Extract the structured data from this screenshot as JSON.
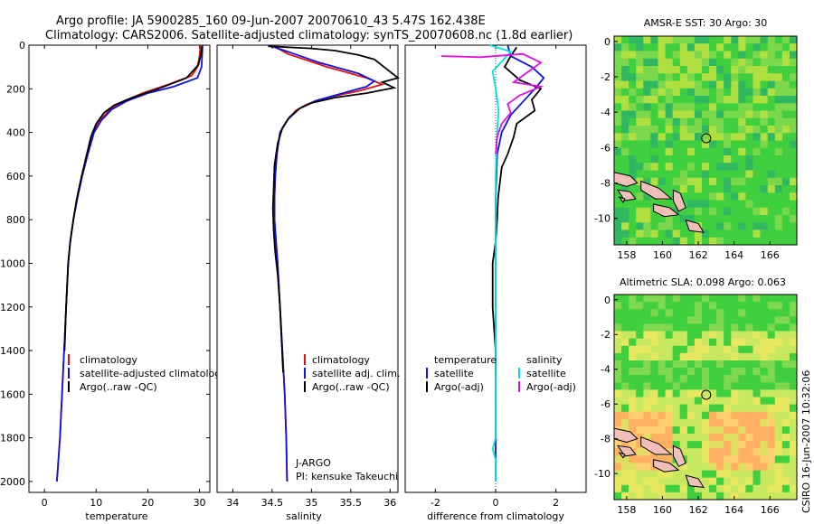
{
  "header": {
    "line1": "Argo profile: JA 5900285_160 09-Jun-2007 20070610_43 5.47S 162.438E",
    "line2": "Climatology: CARS2006. Satellite-adjusted climatology: synTS_20070608.nc (1.8d earlier)"
  },
  "side_label": "CSIRO 16-Jun-2007 10:32:06",
  "depth_ticks": [
    0,
    200,
    400,
    600,
    800,
    1000,
    1200,
    1400,
    1600,
    1800,
    2000
  ],
  "colors": {
    "climatology": "#e01010",
    "satellite": "#1010e0",
    "argo": "#000000",
    "sat_salinity": "#00e0e0",
    "argo_salinity": "#e010e0",
    "map_green": "#3fcf3f",
    "map_yellow": "#b0e040",
    "map_orange": "#ffb060",
    "land": "#f0c0b8"
  },
  "chart_data": [
    {
      "type": "line",
      "id": "temperature",
      "xlabel": "temperature",
      "xlim": [
        -3,
        32
      ],
      "xticks": [
        0,
        10,
        20,
        30
      ],
      "ylim": [
        2050,
        0
      ],
      "legend": [
        "climatology",
        "satellite-adjusted climatology",
        "Argo(..raw -QC)"
      ],
      "series": [
        {
          "name": "climatology",
          "color": "#e01010",
          "points": [
            [
              30.2,
              0
            ],
            [
              30.0,
              50
            ],
            [
              29.6,
              100
            ],
            [
              28.5,
              140
            ],
            [
              24,
              180
            ],
            [
              19,
              220
            ],
            [
              15,
              260
            ],
            [
              12.5,
              300
            ],
            [
              10.5,
              350
            ],
            [
              9.3,
              400
            ],
            [
              8.2,
              500
            ],
            [
              7.2,
              600
            ],
            [
              6.3,
              700
            ],
            [
              5.6,
              800
            ],
            [
              5.0,
              900
            ],
            [
              4.6,
              1000
            ],
            [
              4.2,
              1200
            ],
            [
              3.8,
              1400
            ],
            [
              3.4,
              1600
            ],
            [
              3.0,
              1800
            ],
            [
              2.4,
              2000
            ]
          ]
        },
        {
          "name": "satellite",
          "color": "#1010e0",
          "points": [
            [
              30.6,
              0
            ],
            [
              30.5,
              50
            ],
            [
              30.4,
              100
            ],
            [
              29.6,
              150
            ],
            [
              25,
              190
            ],
            [
              20,
              220
            ],
            [
              16,
              255
            ],
            [
              13,
              295
            ],
            [
              11,
              345
            ],
            [
              9.6,
              400
            ],
            [
              8.4,
              500
            ],
            [
              7.3,
              600
            ],
            [
              6.4,
              700
            ],
            [
              5.6,
              800
            ],
            [
              5.0,
              900
            ],
            [
              4.6,
              1000
            ],
            [
              4.2,
              1200
            ],
            [
              3.8,
              1400
            ],
            [
              3.4,
              1600
            ],
            [
              3.0,
              1800
            ],
            [
              2.4,
              2000
            ]
          ]
        },
        {
          "name": "Argo",
          "color": "#000000",
          "points": [
            [
              30.5,
              5
            ],
            [
              30.3,
              40
            ],
            [
              29.8,
              90
            ],
            [
              27.5,
              150
            ],
            [
              22,
              200
            ],
            [
              17,
              240
            ],
            [
              13.5,
              275
            ],
            [
              11.5,
              310
            ],
            [
              10,
              360
            ],
            [
              9,
              420
            ],
            [
              8.2,
              500
            ],
            [
              7.2,
              600
            ],
            [
              6.3,
              700
            ],
            [
              5.6,
              800
            ],
            [
              5.0,
              900
            ],
            [
              4.6,
              1000
            ],
            [
              4.2,
              1200
            ],
            [
              3.9,
              1400
            ]
          ]
        }
      ]
    },
    {
      "type": "line",
      "id": "salinity",
      "xlabel": "salinity",
      "xlim": [
        33.8,
        36.1
      ],
      "xticks": [
        34,
        34.5,
        35,
        35.5,
        36
      ],
      "xtick_labels": [
        "34",
        "34.5",
        "35",
        "35.5",
        "36"
      ],
      "ylim": [
        2050,
        0
      ],
      "legend": [
        "climatology",
        "satellite adj. clim.",
        "Argo(..raw -QC)"
      ],
      "series": [
        {
          "name": "climatology",
          "color": "#e01010",
          "points": [
            [
              34.5,
              0
            ],
            [
              34.7,
              40
            ],
            [
              35.2,
              100
            ],
            [
              35.7,
              150
            ],
            [
              35.9,
              180
            ],
            [
              35.6,
              210
            ],
            [
              35.2,
              240
            ],
            [
              34.95,
              270
            ],
            [
              34.8,
              300
            ],
            [
              34.68,
              350
            ],
            [
              34.6,
              400
            ],
            [
              34.56,
              500
            ],
            [
              34.54,
              600
            ],
            [
              34.53,
              700
            ],
            [
              34.53,
              800
            ],
            [
              34.55,
              900
            ],
            [
              34.57,
              1000
            ],
            [
              34.6,
              1200
            ],
            [
              34.63,
              1400
            ],
            [
              34.66,
              1600
            ],
            [
              34.68,
              1800
            ],
            [
              34.69,
              2000
            ]
          ]
        },
        {
          "name": "satellite",
          "color": "#1010e0",
          "points": [
            [
              34.45,
              0
            ],
            [
              34.7,
              30
            ],
            [
              35.1,
              80
            ],
            [
              35.6,
              130
            ],
            [
              35.8,
              165
            ],
            [
              35.7,
              190
            ],
            [
              35.4,
              220
            ],
            [
              35.05,
              255
            ],
            [
              34.85,
              290
            ],
            [
              34.7,
              340
            ],
            [
              34.6,
              400
            ],
            [
              34.56,
              500
            ],
            [
              34.54,
              600
            ],
            [
              34.53,
              700
            ],
            [
              34.53,
              800
            ],
            [
              34.55,
              900
            ],
            [
              34.57,
              1000
            ],
            [
              34.6,
              1200
            ],
            [
              34.63,
              1400
            ],
            [
              34.66,
              1600
            ],
            [
              34.68,
              1800
            ],
            [
              34.69,
              2000
            ]
          ]
        },
        {
          "name": "Argo",
          "color": "#000000",
          "points": [
            [
              34.45,
              5
            ],
            [
              35.0,
              15
            ],
            [
              35.3,
              25
            ],
            [
              35.6,
              45
            ],
            [
              35.8,
              65
            ],
            [
              36.1,
              150
            ],
            [
              35.9,
              170
            ],
            [
              36.05,
              195
            ],
            [
              35.7,
              220
            ],
            [
              35.3,
              240
            ],
            [
              35.0,
              265
            ],
            [
              34.85,
              290
            ],
            [
              34.72,
              330
            ],
            [
              34.63,
              380
            ],
            [
              34.57,
              450
            ],
            [
              34.53,
              550
            ],
            [
              34.52,
              650
            ],
            [
              34.51,
              750
            ],
            [
              34.52,
              850
            ],
            [
              34.54,
              950
            ],
            [
              34.57,
              1050
            ],
            [
              34.6,
              1200
            ],
            [
              34.62,
              1350
            ],
            [
              34.64,
              1500
            ]
          ]
        }
      ]
    },
    {
      "type": "line",
      "id": "difference",
      "xlabel": "difference from climatology",
      "xlim": [
        -3,
        3
      ],
      "xticks": [
        -2,
        0,
        2
      ],
      "ylim": [
        2050,
        0
      ],
      "legend_temperature_title": "temperature",
      "legend_salinity_title": "salinity",
      "legend_temperature": [
        "satellite",
        "Argo(-adj)"
      ],
      "legend_salinity": [
        "satellite",
        "Argo(-adj)"
      ],
      "series": [
        {
          "name": "temperature satellite",
          "color": "#1010e0",
          "points": [
            [
              0.4,
              0
            ],
            [
              0.5,
              50
            ],
            [
              1.2,
              100
            ],
            [
              1.6,
              150
            ],
            [
              1.3,
              200
            ],
            [
              0.9,
              260
            ],
            [
              0.5,
              320
            ],
            [
              0.2,
              400
            ],
            [
              0.05,
              500
            ],
            [
              0.0,
              700
            ],
            [
              0.0,
              1000
            ],
            [
              0.0,
              2000
            ]
          ]
        },
        {
          "name": "temperature Argo",
          "color": "#000000",
          "points": [
            [
              0.7,
              10
            ],
            [
              0.5,
              50
            ],
            [
              0.3,
              100
            ],
            [
              0.8,
              160
            ],
            [
              1.5,
              200
            ],
            [
              1.2,
              250
            ],
            [
              1.3,
              300
            ],
            [
              0.7,
              360
            ],
            [
              0.6,
              420
            ],
            [
              0.4,
              500
            ],
            [
              0.2,
              560
            ],
            [
              0.15,
              620
            ],
            [
              0.08,
              700
            ],
            [
              0.05,
              800
            ],
            [
              0.0,
              900
            ],
            [
              -0.1,
              1000
            ],
            [
              -0.1,
              1200
            ],
            [
              -0.05,
              1300
            ],
            [
              0.0,
              1400
            ],
            [
              0.0,
              1500
            ]
          ]
        },
        {
          "name": "salinity satellite",
          "color": "#00e0e0",
          "points": [
            [
              -0.2,
              0
            ],
            [
              0.5,
              30
            ],
            [
              0.3,
              60
            ],
            [
              -0.1,
              120
            ],
            [
              0.0,
              200
            ],
            [
              0.1,
              300
            ],
            [
              0.05,
              400
            ],
            [
              0.0,
              600
            ],
            [
              0.0,
              1000
            ],
            [
              0.0,
              1800
            ],
            [
              -0.1,
              1850
            ],
            [
              0.0,
              1900
            ],
            [
              0.0,
              2000
            ]
          ]
        },
        {
          "name": "salinity Argo",
          "color": "#e010e0",
          "points": [
            [
              -1.8,
              50
            ],
            [
              -0.5,
              55
            ],
            [
              0.9,
              40
            ],
            [
              1.5,
              80
            ],
            [
              1.0,
              130
            ],
            [
              0.6,
              170
            ],
            [
              1.5,
              190
            ],
            [
              0.8,
              230
            ],
            [
              0.4,
              270
            ],
            [
              0.5,
              310
            ],
            [
              0.2,
              360
            ],
            [
              0.05,
              420
            ],
            [
              0.0,
              500
            ]
          ]
        }
      ]
    },
    {
      "type": "heatmap",
      "id": "sst_map",
      "title": "AMSR-E SST: 30 Argo: 30",
      "xlim": [
        157.3,
        167.5
      ],
      "ylim": [
        -11.5,
        0.3
      ],
      "xticks": [
        158,
        160,
        162,
        164,
        166
      ],
      "yticks": [
        0,
        -2,
        -4,
        -6,
        -8,
        -10
      ],
      "argo_position": [
        162.44,
        -5.47
      ]
    },
    {
      "type": "heatmap",
      "id": "sla_map",
      "title": "Altimetric SLA: 0.098 Argo: 0.063",
      "xlim": [
        157.3,
        167.5
      ],
      "ylim": [
        -11.5,
        0.3
      ],
      "xticks": [
        158,
        160,
        162,
        164,
        166
      ],
      "yticks": [
        0,
        -2,
        -4,
        -6,
        -8,
        -10
      ],
      "argo_position": [
        162.44,
        -5.47
      ]
    }
  ],
  "annotations": {
    "program": "J-ARGO",
    "pi": "PI: kensuke Takeuchi"
  }
}
